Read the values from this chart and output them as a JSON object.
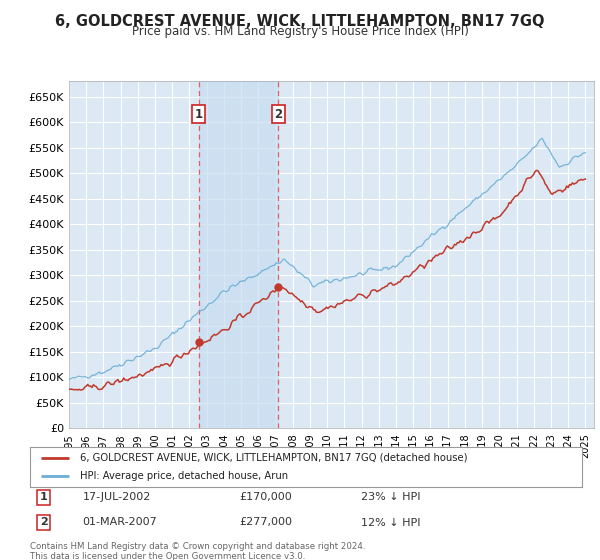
{
  "title": "6, GOLDCREST AVENUE, WICK, LITTLEHAMPTON, BN17 7GQ",
  "subtitle": "Price paid vs. HM Land Registry's House Price Index (HPI)",
  "background_color": "#ffffff",
  "plot_bg_color": "#dce9f5",
  "grid_color": "#ffffff",
  "hpi_color": "#6baed6",
  "price_color": "#c0392b",
  "sale1_date_num": 2002.54,
  "sale1_price": 170000,
  "sale2_date_num": 2007.16,
  "sale2_price": 277000,
  "sale1_date_str": "17-JUL-2002",
  "sale2_date_str": "01-MAR-2007",
  "sale1_pct": "23% ↓ HPI",
  "sale2_pct": "12% ↓ HPI",
  "legend_line1": "6, GOLDCREST AVENUE, WICK, LITTLEHAMPTON, BN17 7GQ (detached house)",
  "legend_line2": "HPI: Average price, detached house, Arun",
  "footer": "Contains HM Land Registry data © Crown copyright and database right 2024.\nThis data is licensed under the Open Government Licence v3.0.",
  "ylim_min": 0,
  "ylim_max": 680000,
  "xmin": 1995,
  "xmax": 2025.5,
  "yticks": [
    0,
    50000,
    100000,
    150000,
    200000,
    250000,
    300000,
    350000,
    400000,
    450000,
    500000,
    550000,
    600000,
    650000
  ],
  "ytick_labels": [
    "£0",
    "£50K",
    "£100K",
    "£150K",
    "£200K",
    "£250K",
    "£300K",
    "£350K",
    "£400K",
    "£450K",
    "£500K",
    "£550K",
    "£600K",
    "£650K"
  ],
  "sale1_price_str": "£170,000",
  "sale2_price_str": "£277,000"
}
